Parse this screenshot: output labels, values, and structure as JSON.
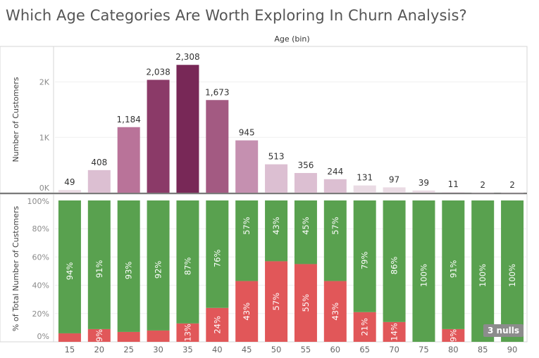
{
  "title": "Which Age Categories Are Worth Exploring In Churn Analysis?",
  "header": {
    "column_label": "Age (bin)"
  },
  "nulls_badge": "3 nulls",
  "colors": {
    "retained": "#59a14f",
    "churned": "#e15759",
    "count_scale": [
      "#eadbe4",
      "#dcbfd2",
      "#c590b0",
      "#b97399",
      "#a35a82",
      "#8b3a68",
      "#782857"
    ]
  },
  "chart_data": [
    {
      "type": "bar",
      "ylabel": "Number of Customers",
      "categories": [
        "15",
        "20",
        "25",
        "30",
        "35",
        "40",
        "45",
        "50",
        "55",
        "60",
        "65",
        "70",
        "75",
        "80",
        "85",
        "90"
      ],
      "values": [
        49,
        408,
        1184,
        2038,
        2308,
        1673,
        945,
        513,
        356,
        244,
        131,
        97,
        39,
        11,
        2,
        2
      ],
      "value_labels": [
        "49",
        "408",
        "1,184",
        "2,038",
        "2,308",
        "1,673",
        "945",
        "513",
        "356",
        "244",
        "131",
        "97",
        "39",
        "11",
        "2",
        "2"
      ],
      "ylim": [
        0,
        2500
      ],
      "yticks": [
        {
          "value": 0,
          "label": "0K"
        },
        {
          "value": 1000,
          "label": "1K"
        },
        {
          "value": 2000,
          "label": "2K"
        }
      ],
      "grid": true
    },
    {
      "type": "bar",
      "stacked": true,
      "ylabel": "% of Total Number of Customers",
      "xlabel": "",
      "categories": [
        "15",
        "20",
        "25",
        "30",
        "35",
        "40",
        "45",
        "50",
        "55",
        "60",
        "65",
        "70",
        "75",
        "80",
        "85",
        "90"
      ],
      "series": [
        {
          "values": [
            6,
            9,
            7,
            8,
            13,
            24,
            43,
            57,
            55,
            43,
            21,
            14,
            0,
            9,
            0,
            0
          ],
          "labels": [
            "",
            "9%",
            "",
            "",
            "13%",
            "24%",
            "43%",
            "57%",
            "55%",
            "43%",
            "21%",
            "14%",
            "",
            "9%",
            "",
            ""
          ]
        },
        {
          "values": [
            94,
            91,
            93,
            92,
            87,
            76,
            57,
            43,
            45,
            57,
            79,
            86,
            100,
            91,
            100,
            100
          ],
          "labels": [
            "94%",
            "91%",
            "93%",
            "92%",
            "87%",
            "76%",
            "57%",
            "43%",
            "45%",
            "57%",
            "79%",
            "86%",
            "100%",
            "91%",
            "100%",
            "100%"
          ]
        }
      ],
      "ylim": [
        0,
        100
      ],
      "yticks": [
        "0%",
        "20%",
        "40%",
        "60%",
        "80%",
        "100%"
      ]
    }
  ]
}
